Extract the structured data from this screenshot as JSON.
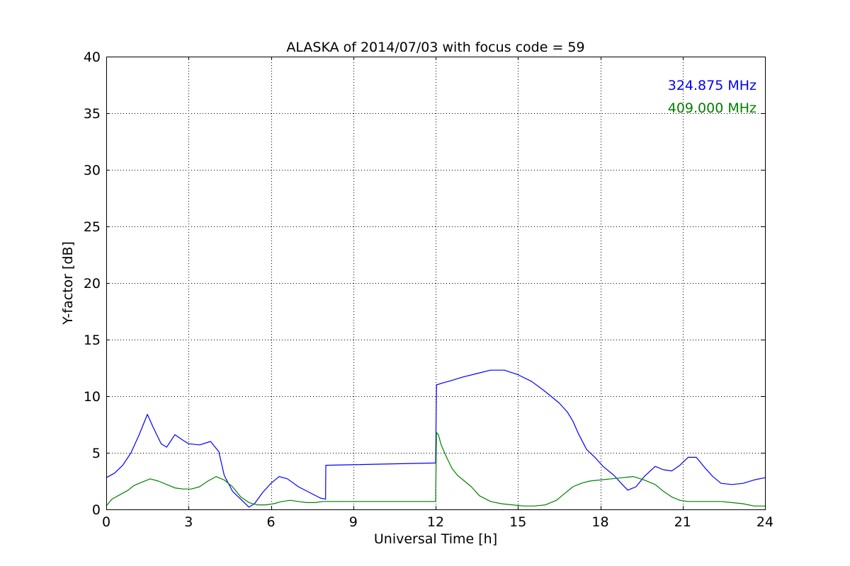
{
  "chart_data": {
    "type": "line",
    "title": "ALASKA of 2014/07/03 with focus code = 59",
    "xlabel": "Universal Time [h]",
    "ylabel": "Y-factor [dB]",
    "xlim": [
      0,
      24
    ],
    "ylim": [
      0,
      40
    ],
    "xticks": [
      0,
      3,
      6,
      9,
      12,
      15,
      18,
      21,
      24
    ],
    "yticks": [
      0,
      5,
      10,
      15,
      20,
      25,
      30,
      35,
      40
    ],
    "grid": true,
    "legend_position": "top-right",
    "series": [
      {
        "name": "324.875 MHz",
        "color": "#0000ff",
        "x": [
          0,
          0.3,
          0.6,
          0.9,
          1.2,
          1.5,
          1.7,
          2.0,
          2.2,
          2.5,
          2.8,
          3.0,
          3.4,
          3.8,
          4.1,
          4.3,
          4.6,
          4.9,
          5.2,
          5.4,
          5.7,
          6.0,
          6.3,
          6.6,
          7.0,
          7.4,
          7.8,
          7.99,
          8.0,
          12.0,
          12.03,
          12.3,
          12.6,
          13.0,
          13.5,
          14.0,
          14.5,
          15.0,
          15.5,
          16.0,
          16.5,
          16.8,
          17.0,
          17.2,
          17.5,
          17.8,
          18.1,
          18.5,
          18.8,
          19.0,
          19.3,
          19.6,
          20.0,
          20.3,
          20.6,
          20.9,
          21.2,
          21.5,
          21.8,
          22.1,
          22.4,
          22.8,
          23.2,
          23.6,
          24.0
        ],
        "y": [
          2.8,
          3.2,
          3.9,
          5.0,
          6.6,
          8.4,
          7.3,
          5.8,
          5.5,
          6.6,
          6.1,
          5.8,
          5.7,
          6.0,
          5.1,
          3.0,
          1.6,
          0.9,
          0.2,
          0.5,
          1.5,
          2.3,
          2.9,
          2.7,
          2.0,
          1.5,
          1.0,
          0.9,
          3.9,
          4.1,
          11.0,
          11.2,
          11.4,
          11.7,
          12.0,
          12.3,
          12.3,
          11.9,
          11.3,
          10.4,
          9.4,
          8.6,
          7.8,
          6.7,
          5.3,
          4.6,
          3.8,
          3.0,
          2.2,
          1.7,
          2.0,
          2.9,
          3.8,
          3.5,
          3.4,
          3.9,
          4.6,
          4.6,
          3.7,
          2.9,
          2.3,
          2.2,
          2.3,
          2.6,
          2.8
        ]
      },
      {
        "name": "409.000 MHz",
        "color": "#008000",
        "x": [
          0,
          0.2,
          0.5,
          0.8,
          1.0,
          1.3,
          1.6,
          1.9,
          2.2,
          2.5,
          2.8,
          3.1,
          3.4,
          3.7,
          4.0,
          4.3,
          4.6,
          4.9,
          5.2,
          5.5,
          5.8,
          6.1,
          6.4,
          6.7,
          7.0,
          7.3,
          7.6,
          7.9,
          8.0,
          12.0,
          12.03,
          12.1,
          12.2,
          12.4,
          12.6,
          12.8,
          13.0,
          13.3,
          13.6,
          14.0,
          14.4,
          14.8,
          15.2,
          15.6,
          16.0,
          16.4,
          16.7,
          17.0,
          17.3,
          17.6,
          18.0,
          18.4,
          18.8,
          19.2,
          19.6,
          20.0,
          20.3,
          20.6,
          20.9,
          21.2,
          21.6,
          22.0,
          22.4,
          22.8,
          23.2,
          23.6,
          24.0
        ],
        "y": [
          0.3,
          0.9,
          1.3,
          1.7,
          2.1,
          2.4,
          2.7,
          2.5,
          2.2,
          1.9,
          1.8,
          1.8,
          2.0,
          2.5,
          2.9,
          2.6,
          2.0,
          1.1,
          0.6,
          0.4,
          0.4,
          0.5,
          0.7,
          0.8,
          0.7,
          0.6,
          0.6,
          0.7,
          0.7,
          0.7,
          6.8,
          6.6,
          5.7,
          4.6,
          3.6,
          3.0,
          2.6,
          2.0,
          1.2,
          0.7,
          0.5,
          0.4,
          0.3,
          0.3,
          0.4,
          0.8,
          1.4,
          2.0,
          2.3,
          2.5,
          2.6,
          2.7,
          2.8,
          2.9,
          2.6,
          2.2,
          1.6,
          1.1,
          0.8,
          0.7,
          0.7,
          0.7,
          0.7,
          0.6,
          0.5,
          0.3,
          0.3
        ]
      }
    ]
  }
}
